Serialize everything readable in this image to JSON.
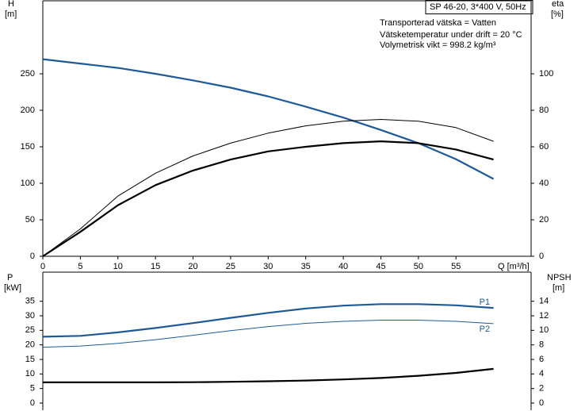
{
  "chart_data": [
    {
      "type": "line",
      "info": "SP 46-20, 3*400 V, 50Hz",
      "annotations": [
        "Transporterad vätska = Vatten",
        "Vätsketemperatur under drift = 20 °C",
        "Volymetrisk vikt = 998.2 kg/m³"
      ],
      "ylabel": "H",
      "yunit": "[m]",
      "y2label": "eta",
      "y2unit": "[%]",
      "xlabel": "Q [m³/h]",
      "x": [
        0,
        5,
        10,
        15,
        20,
        25,
        30,
        35,
        40,
        45,
        50,
        55,
        60
      ],
      "xlim": [
        0,
        65
      ],
      "xticks": [
        0,
        5,
        10,
        15,
        20,
        25,
        30,
        35,
        40,
        45,
        50,
        55
      ],
      "ylim": [
        0,
        350
      ],
      "yticks": [
        0,
        50,
        100,
        150,
        200,
        250
      ],
      "y2lim": [
        0,
        140
      ],
      "y2ticks": [
        0,
        20,
        40,
        60,
        80,
        100
      ],
      "series": [
        {
          "color": "#1f5a96",
          "values": [
            270,
            264,
            258,
            250,
            241,
            231,
            219,
            205,
            190,
            173,
            155,
            133,
            106
          ]
        },
        {
          "color": "#000000",
          "axis": "y2",
          "values": [
            0,
            15,
            33,
            45.5,
            55,
            62,
            67.5,
            71.5,
            74,
            75,
            74,
            70.5,
            63
          ]
        },
        {
          "color": "#000000",
          "axis": "y2",
          "values": [
            0,
            13.4,
            28,
            39,
            47,
            53,
            57.5,
            60,
            62,
            63,
            62,
            58.5,
            53
          ]
        }
      ]
    },
    {
      "type": "line",
      "ylabel": "P",
      "yunit": "[kW]",
      "y2label": "NPSH",
      "y2unit": "[m]",
      "x": [
        0,
        5,
        10,
        15,
        20,
        25,
        30,
        35,
        40,
        45,
        50,
        55,
        60
      ],
      "xlim": [
        0,
        65
      ],
      "ylim": [
        0,
        45
      ],
      "yticks": [
        0,
        5,
        10,
        15,
        20,
        25,
        30,
        35
      ],
      "y2lim": [
        0,
        18
      ],
      "y2ticks": [
        0,
        2,
        4,
        6,
        8,
        10,
        12,
        14
      ],
      "series": [
        {
          "name": "P1",
          "color": "#1f5a96",
          "values": [
            22.8,
            23.1,
            24.3,
            25.8,
            27.5,
            29.3,
            31,
            32.5,
            33.5,
            34,
            34,
            33.6,
            32.7
          ]
        },
        {
          "name": "P2",
          "color": "#1f5a96",
          "values": [
            19.2,
            19.6,
            20.5,
            21.8,
            23.3,
            24.9,
            26.3,
            27.4,
            28.1,
            28.5,
            28.5,
            28.1,
            27.3
          ]
        },
        {
          "color": "#000000",
          "axis": "y2",
          "values": [
            2.85,
            2.85,
            2.85,
            2.85,
            2.87,
            2.92,
            3.0,
            3.1,
            3.25,
            3.45,
            3.75,
            4.15,
            4.7
          ]
        }
      ]
    }
  ]
}
